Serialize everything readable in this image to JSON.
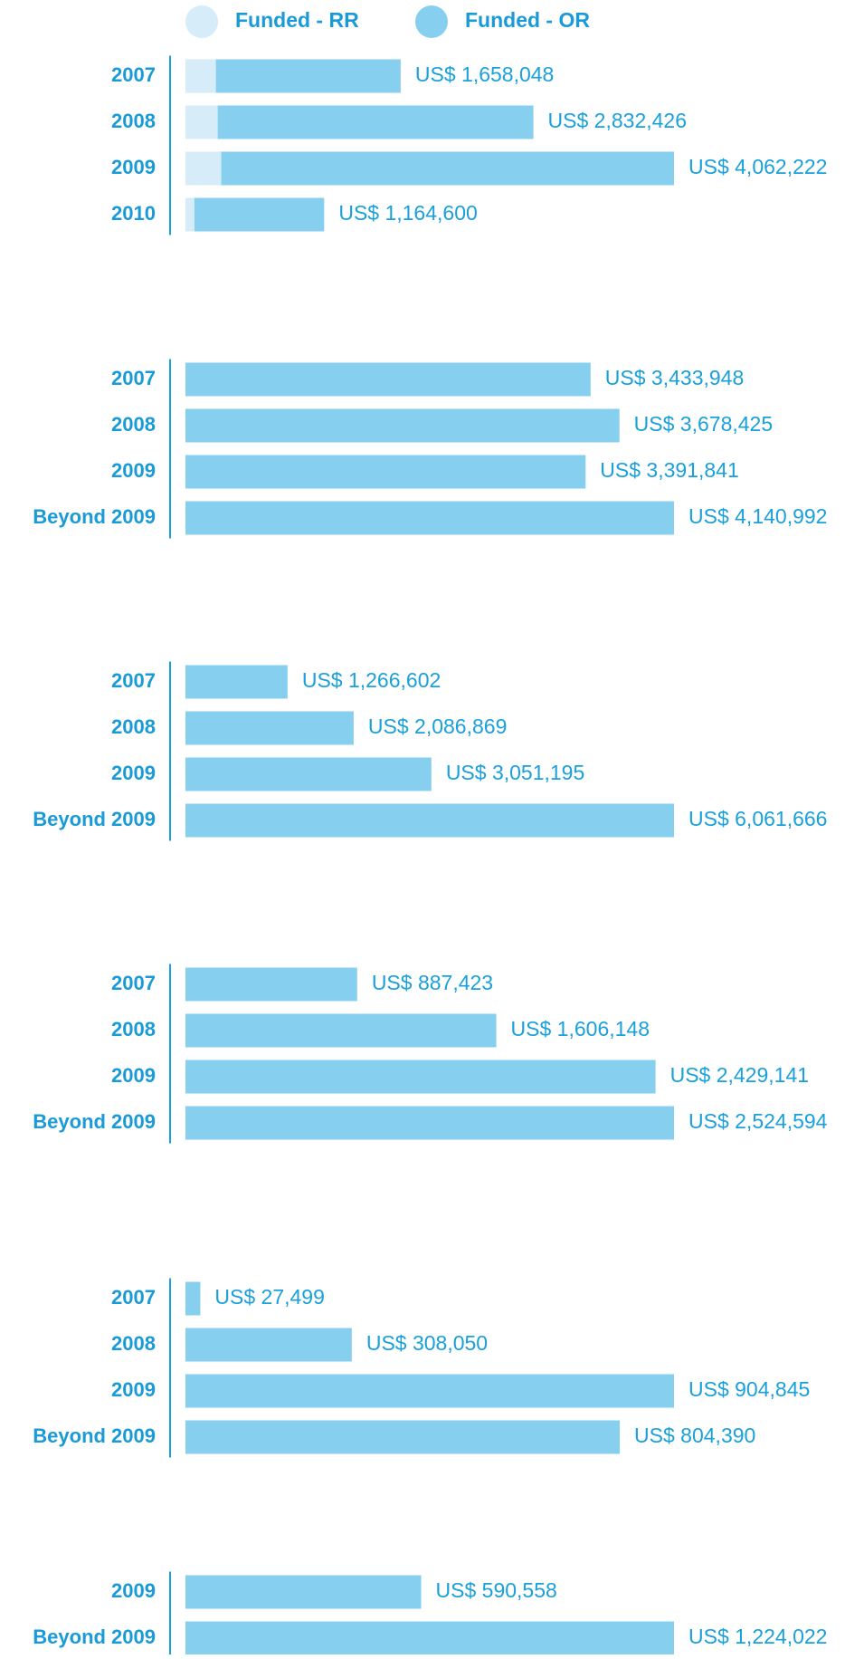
{
  "chart_data": [
    {
      "type": "bar",
      "categories": [
        "2007",
        "2008",
        "2009",
        "2010"
      ],
      "series": [
        {
          "name": "Funded - RR",
          "color": "#d6ecf9",
          "values": [
            273000,
            289000,
            321000,
            80000
          ]
        },
        {
          "name": "Funded - OR",
          "color": "#87cfef",
          "values": [
            1658048,
            2832426,
            4062222,
            1164600
          ],
          "value_labels": [
            "US$ 1,658,048",
            "US$ 2,832,426",
            "US$ 4,062,222",
            "US$ 1,164,600"
          ]
        }
      ]
    },
    {
      "type": "bar",
      "categories": [
        "2007",
        "2008",
        "2009",
        "Beyond 2009"
      ],
      "color": "#87cfef",
      "values": [
        3433948,
        3678425,
        3391841,
        4140992
      ],
      "value_labels": [
        "US$ 3,433,948",
        "US$ 3,678,425",
        "US$ 3,391,841",
        "US$ 4,140,992"
      ]
    },
    {
      "type": "bar",
      "categories": [
        "2007",
        "2008",
        "2009",
        "Beyond 2009"
      ],
      "color": "#87cfef",
      "values": [
        1266602,
        2086869,
        3051195,
        6061666
      ],
      "value_labels": [
        "US$ 1,266,602",
        "US$ 2,086,869",
        "US$ 3,051,195",
        "US$ 6,061,666"
      ]
    },
    {
      "type": "bar",
      "categories": [
        "2007",
        "2008",
        "2009",
        "Beyond 2009"
      ],
      "color": "#87cfef",
      "values": [
        887423,
        1606148,
        2429141,
        2524594
      ],
      "value_labels": [
        "US$ 887,423",
        "US$ 1,606,148",
        "US$ 2,429,141",
        "US$ 2,524,594"
      ]
    },
    {
      "type": "bar",
      "categories": [
        "2007",
        "2008",
        "2009",
        "Beyond 2009"
      ],
      "color": "#87cfef",
      "values": [
        27499,
        308050,
        904845,
        804390
      ],
      "value_labels": [
        "US$ 27,499",
        "US$ 308,050",
        "US$ 904,845",
        "US$ 804,390"
      ]
    },
    {
      "type": "bar",
      "categories": [
        "2009",
        "Beyond 2009"
      ],
      "color": "#87cfef",
      "values": [
        590558,
        1224022
      ],
      "value_labels": [
        "US$ 590,558",
        "US$ 1,224,022"
      ]
    }
  ]
}
